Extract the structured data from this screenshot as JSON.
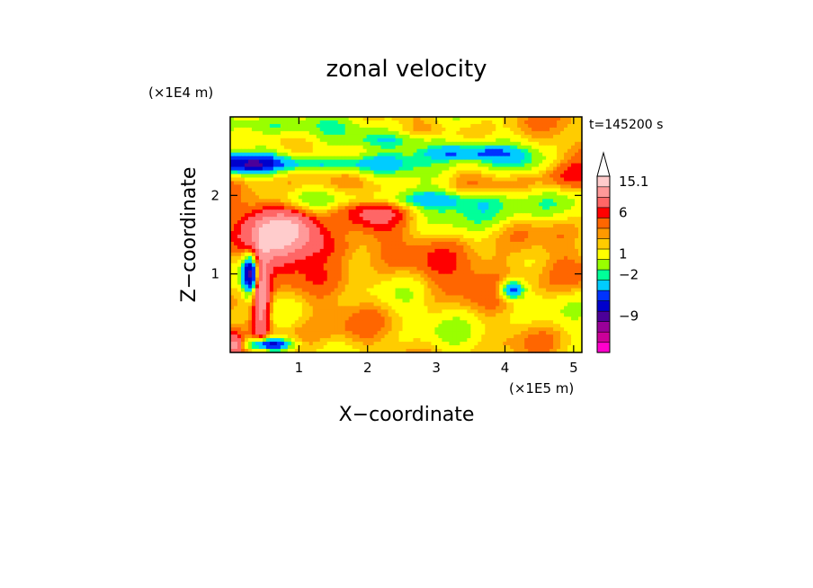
{
  "chart_data": {
    "type": "heatmap",
    "title": "zonal velocity",
    "xlabel": "X−coordinate",
    "ylabel": "Z−coordinate",
    "x_unit": "(×1E5 m)",
    "y_unit": "(×1E4 m)",
    "time_label": "t=145200 s",
    "xlim": [
      0,
      5.12
    ],
    "ylim": [
      0,
      3.0
    ],
    "x_ticks": [
      1,
      2,
      3,
      4,
      5
    ],
    "y_ticks": [
      1,
      2
    ],
    "grid": false,
    "colorbar": {
      "colors": [
        "#ff00cc",
        "#cc0099",
        "#990099",
        "#4c0099",
        "#0000cc",
        "#0033ff",
        "#00ccff",
        "#00ff99",
        "#99ff00",
        "#ffff00",
        "#ffcc00",
        "#ff9900",
        "#ff6600",
        "#ff0000",
        "#ff6666",
        "#ff9999",
        "#ffcccc"
      ],
      "labels": [
        {
          "text": "15.1",
          "value": 15.1
        },
        {
          "text": "6",
          "value": 6
        },
        {
          "text": "1",
          "value": 1
        },
        {
          "text": "−2",
          "value": -2
        },
        {
          "text": "−9",
          "value": -9
        }
      ]
    }
  }
}
